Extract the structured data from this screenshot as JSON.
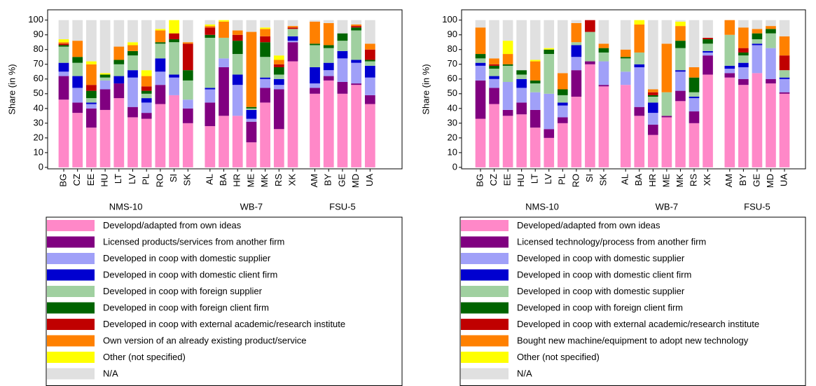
{
  "chart_data": [
    {
      "type": "bar",
      "stacked": true,
      "ylabel": "Share (in %)",
      "categories": [
        "BG",
        "CZ",
        "EE",
        "HU",
        "LT",
        "LV",
        "PL",
        "RO",
        "SI",
        "SK",
        null,
        "AL",
        "BA",
        "HR",
        "ME",
        "MK",
        "RS",
        "XK",
        null,
        "AM",
        "BY",
        "GE",
        "MD",
        "UA"
      ],
      "groups": [
        "NMS-10",
        "WB-7",
        "FSU-5"
      ],
      "ylim": [
        -1,
        107
      ],
      "yticks": [
        0,
        10,
        20,
        30,
        40,
        50,
        60,
        70,
        80,
        90,
        100
      ],
      "series": [
        {
          "name": "Developd/adapted from own ideas",
          "color": "#ff88c8",
          "values": [
            46,
            37,
            27,
            39,
            47,
            34,
            33,
            43,
            49,
            30,
            null,
            28,
            35,
            35,
            17,
            44,
            26,
            72,
            null,
            50,
            59,
            50,
            56,
            43
          ]
        },
        {
          "name": "Licensed products/services from another firm",
          "color": "#800080",
          "values": [
            16,
            7,
            13,
            14,
            10,
            7,
            4,
            13,
            0,
            10,
            null,
            16,
            33,
            0,
            14,
            10,
            27,
            13,
            null,
            4,
            3,
            8,
            1,
            6
          ]
        },
        {
          "name": "Developed in coop with domestic supplier",
          "color": "#a0a0f8",
          "values": [
            3,
            10,
            3,
            6,
            0,
            20,
            7,
            9,
            12,
            6,
            null,
            9,
            6,
            21,
            2,
            6,
            3,
            1,
            null,
            3,
            4,
            16,
            14,
            12
          ]
        },
        {
          "name": "Developed in coop with domestic client firm",
          "color": "#0000d0",
          "values": [
            6,
            8,
            1,
            0,
            5,
            5,
            3,
            9,
            2,
            0,
            null,
            1,
            0,
            7,
            6,
            1,
            4,
            3,
            null,
            11,
            5,
            5,
            2,
            8
          ]
        },
        {
          "name": "Developed in coop with foreign supplier",
          "color": "#a0d0a0",
          "values": [
            11,
            9,
            3,
            2,
            8,
            10,
            3,
            10,
            22,
            13,
            null,
            34,
            14,
            14,
            1,
            14,
            3,
            5,
            null,
            15,
            10,
            7,
            20,
            3
          ]
        },
        {
          "name": "Developed in coop with foreign client firm",
          "color": "#006400",
          "values": [
            1,
            4,
            5,
            2,
            3,
            3,
            2,
            1,
            2,
            7,
            null,
            2,
            0,
            9,
            1,
            10,
            5,
            0,
            null,
            1,
            2,
            5,
            2,
            1
          ]
        },
        {
          "name": "Developed in coop with external academic/research institute",
          "color": "#c00000",
          "values": [
            1,
            0,
            4,
            0,
            0,
            0,
            3,
            0,
            4,
            18,
            null,
            5,
            0,
            4,
            0,
            4,
            2,
            1,
            null,
            0,
            0,
            0,
            1,
            7
          ]
        },
        {
          "name": "Own version of an already existing product/service",
          "color": "#ff8000",
          "values": [
            1,
            11,
            14,
            0,
            9,
            4,
            7,
            8,
            0,
            1,
            null,
            1,
            11,
            3,
            51,
            5,
            3,
            1,
            null,
            15,
            15,
            0,
            1,
            4
          ]
        },
        {
          "name": "Other (not specified)",
          "color": "#ffff00",
          "values": [
            2,
            0,
            2,
            1,
            0,
            2,
            4,
            1,
            9,
            0,
            null,
            1,
            1,
            0,
            0,
            1,
            3,
            0,
            null,
            0,
            0,
            0,
            0,
            0
          ]
        },
        {
          "name": "N/A",
          "color": "#e0e0e0",
          "values": [
            13,
            14,
            28,
            36,
            18,
            15,
            34,
            6,
            0,
            15,
            null,
            3,
            0,
            7,
            8,
            5,
            24,
            4,
            null,
            1,
            2,
            9,
            3,
            16
          ]
        }
      ]
    },
    {
      "type": "bar",
      "stacked": true,
      "ylabel": "Share (in %)",
      "categories": [
        "BG",
        "CZ",
        "EE",
        "HU",
        "LT",
        "LV",
        "PL",
        "RO",
        "SI",
        "SK",
        null,
        "AL",
        "BA",
        "HR",
        "ME",
        "MK",
        "RS",
        "XK",
        null,
        "AM",
        "BY",
        "GE",
        "MD",
        "UA"
      ],
      "groups": [
        "NMS-10",
        "WB-7",
        "FSU-5"
      ],
      "ylim": [
        -1,
        107
      ],
      "yticks": [
        0,
        10,
        20,
        30,
        40,
        50,
        60,
        70,
        80,
        90,
        100
      ],
      "series": [
        {
          "name": "Developed/adapted from own ideas",
          "color": "#ff88c8",
          "values": [
            33,
            43,
            35,
            36,
            27,
            20,
            30,
            48,
            70,
            55,
            null,
            56,
            35,
            22,
            34,
            45,
            30,
            63,
            null,
            61,
            56,
            64,
            57,
            50
          ]
        },
        {
          "name": "Licensed technology/process from another firm",
          "color": "#800080",
          "values": [
            26,
            11,
            4,
            8,
            12,
            6,
            4,
            18,
            2,
            1,
            null,
            0,
            6,
            7,
            1,
            7,
            8,
            13,
            null,
            3,
            4,
            0,
            3,
            1
          ]
        },
        {
          "name": "Developed in coop with domestic supplier",
          "color": "#a0a0f8",
          "values": [
            10,
            6,
            19,
            10,
            12,
            24,
            8,
            9,
            0,
            16,
            null,
            9,
            27,
            8,
            0,
            13,
            9,
            2,
            null,
            3,
            8,
            19,
            21,
            9
          ]
        },
        {
          "name": "Developed in coop with domestic client firm",
          "color": "#0000d0",
          "values": [
            2,
            2,
            0,
            6,
            0,
            0,
            2,
            8,
            0,
            0,
            null,
            0,
            2,
            7,
            0,
            1,
            1,
            1,
            null,
            2,
            3,
            1,
            0,
            1
          ]
        },
        {
          "name": "Developed in coop with domestic supplier",
          "color": "#a0d0a0",
          "values": [
            3,
            5,
            11,
            3,
            6,
            27,
            5,
            2,
            20,
            6,
            null,
            9,
            8,
            4,
            16,
            15,
            3,
            5,
            null,
            21,
            5,
            3,
            10,
            5
          ]
        },
        {
          "name": "Developed in coop with foreign client firm",
          "color": "#006400",
          "values": [
            3,
            2,
            1,
            3,
            2,
            3,
            4,
            0,
            0,
            3,
            null,
            1,
            0,
            1,
            0,
            5,
            10,
            3,
            null,
            0,
            2,
            4,
            3,
            0
          ]
        },
        {
          "name": "Developed in coop with external academic/research institute",
          "color": "#c00000",
          "values": [
            0,
            1,
            0,
            0,
            0,
            0,
            0,
            0,
            8,
            0,
            null,
            0,
            0,
            2,
            0,
            0,
            0,
            1,
            null,
            0,
            3,
            0,
            0,
            10
          ]
        },
        {
          "name": "Bought new machine/equipment to adopt new technology",
          "color": "#ff8000",
          "values": [
            18,
            4,
            7,
            0,
            13,
            0,
            11,
            13,
            0,
            3,
            null,
            5,
            19,
            2,
            33,
            10,
            7,
            0,
            null,
            10,
            14,
            3,
            2,
            13
          ]
        },
        {
          "name": "Other (not specified)",
          "color": "#ffff00",
          "values": [
            0,
            0,
            9,
            0,
            1,
            1,
            0,
            0,
            0,
            0,
            null,
            0,
            3,
            0,
            0,
            3,
            0,
            0,
            null,
            0,
            0,
            0,
            0,
            0
          ]
        },
        {
          "name": "N/A",
          "color": "#e0e0e0",
          "values": [
            5,
            26,
            14,
            34,
            27,
            19,
            36,
            2,
            0,
            16,
            null,
            20,
            0,
            47,
            16,
            1,
            32,
            12,
            null,
            0,
            5,
            6,
            4,
            11
          ]
        }
      ]
    }
  ]
}
